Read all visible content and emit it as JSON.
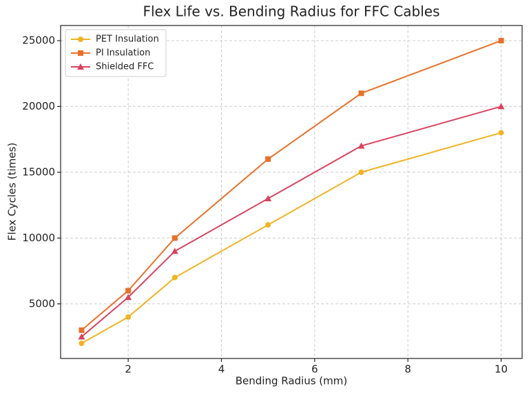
{
  "chart_data": {
    "type": "line",
    "title": "Flex Life vs. Bending Radius for FFC Cables",
    "x_label": "Bending Radius (mm)",
    "y_label": "Flex Cycles (times)",
    "x": [
      1,
      2,
      3,
      5,
      7,
      10
    ],
    "series": [
      {
        "name": "PET Insulation",
        "color": "#f0b323",
        "marker": "circle",
        "values": [
          2000,
          4000,
          7000,
          11000,
          15000,
          18000
        ]
      },
      {
        "name": "PI Insulation",
        "color": "#e8702a",
        "marker": "square",
        "values": [
          3000,
          6000,
          10000,
          16000,
          21000,
          25000
        ]
      },
      {
        "name": "Shielded FFC",
        "color": "#d9435e",
        "marker": "triangle",
        "values": [
          2500,
          5500,
          9000,
          13000,
          17000,
          20000
        ]
      }
    ],
    "xlim": [
      0.55,
      10.45
    ],
    "xticks": [
      2,
      4,
      6,
      8,
      10
    ],
    "ylim": [
      850,
      26150
    ],
    "yticks": [
      5000,
      10000,
      15000,
      20000,
      25000
    ],
    "grid": true,
    "legend": "upper left"
  }
}
